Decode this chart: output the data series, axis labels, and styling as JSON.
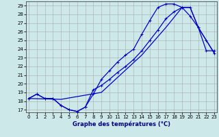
{
  "xlabel": "Graphe des températures (°C)",
  "background_color": "#cce8e8",
  "grid_color": "#aaaaaa",
  "line_color": "#0000cc",
  "xlim": [
    -0.3,
    23.3
  ],
  "ylim": [
    16.7,
    29.5
  ],
  "xticks": [
    0,
    1,
    2,
    3,
    4,
    5,
    6,
    7,
    8,
    9,
    10,
    11,
    12,
    13,
    14,
    15,
    16,
    17,
    18,
    19,
    20,
    21,
    22,
    23
  ],
  "yticks": [
    17,
    18,
    19,
    20,
    21,
    22,
    23,
    24,
    25,
    26,
    27,
    28,
    29
  ],
  "curve1_x": [
    0,
    1,
    2,
    3,
    4,
    5,
    6,
    7,
    8,
    9,
    10,
    11,
    12,
    13,
    14,
    15,
    16,
    17,
    18,
    19,
    20,
    21,
    22,
    23
  ],
  "curve1_y": [
    18.3,
    18.8,
    18.3,
    18.3,
    17.5,
    17.0,
    16.8,
    17.3,
    18.8,
    20.5,
    21.5,
    22.5,
    23.3,
    24.0,
    25.7,
    27.3,
    28.8,
    29.2,
    29.2,
    28.8,
    28.8,
    26.5,
    25.0,
    23.5
  ],
  "curve2_x": [
    0,
    1,
    2,
    3,
    4,
    5,
    6,
    7,
    8,
    9,
    10,
    11,
    12,
    13,
    14,
    15,
    16,
    17,
    18,
    19,
    20,
    21,
    22,
    23
  ],
  "curve2_y": [
    18.3,
    18.8,
    18.3,
    18.3,
    17.5,
    17.0,
    16.8,
    17.3,
    19.3,
    19.8,
    20.5,
    21.3,
    22.0,
    22.8,
    23.8,
    25.0,
    26.2,
    27.5,
    28.3,
    28.8,
    27.8,
    26.5,
    23.8,
    23.8
  ],
  "curve3_x": [
    0,
    4,
    9,
    14,
    17,
    19,
    20,
    21,
    22,
    23
  ],
  "curve3_y": [
    18.3,
    18.2,
    19.0,
    23.3,
    26.5,
    28.8,
    28.8,
    26.5,
    25.0,
    23.5
  ],
  "markersize": 3,
  "linewidth": 0.9
}
